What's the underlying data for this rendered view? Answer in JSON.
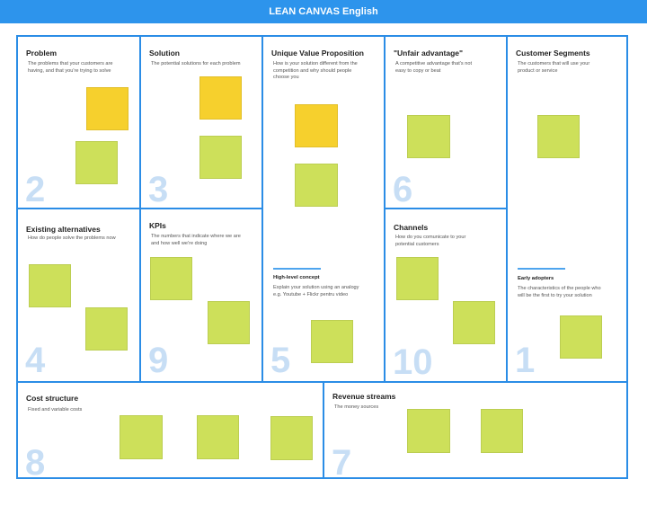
{
  "header": {
    "title": "LEAN CANVAS English"
  },
  "cells": {
    "problem": {
      "title": "Problem",
      "desc": "The problems that your customers are having, and that you're trying to solve",
      "number": "2"
    },
    "existing_alternatives": {
      "title": "Existing alternatives",
      "desc": "How do people solve the problems now",
      "number": "4"
    },
    "solution": {
      "title": "Solution",
      "desc": "The potential solutions for each problem",
      "number": "3"
    },
    "kpis": {
      "title": "KPIs",
      "desc": "The numbers that indicate where we are and how well we're doing",
      "number": "9"
    },
    "uvp": {
      "title": "Unique Value Proposition",
      "desc": "How is your solution different from the competition and why should people choose you",
      "number": "5",
      "sub_title": "High-level concept",
      "sub_desc": "Explain your solution using an analogy e.g. Youtube + Flickr pentru video"
    },
    "unfair_advantage": {
      "title": "\"Unfair advantage\"",
      "desc": "A competitive advantage that's not easy to copy or beat",
      "number": "6"
    },
    "channels": {
      "title": "Channels",
      "desc": "How do you comunicate to your potential customers",
      "number": "10"
    },
    "customer_segments": {
      "title": "Customer Segments",
      "desc": "The customers that will use your product or service",
      "number": "1",
      "sub_title": "Early adopters",
      "sub_desc": "The characteristics of the people who will be the first to try your solution"
    },
    "cost_structure": {
      "title": "Cost structure",
      "desc": "Fixed and variable costs",
      "number": "8"
    },
    "revenue_streams": {
      "title": "Revenue streams",
      "desc": "The money sources",
      "number": "7"
    }
  },
  "colors": {
    "border": "#2b8de6",
    "header": "#2d94ec",
    "sticky_green": "#cde05a",
    "sticky_yellow": "#f6d02d",
    "number": "#c7def5"
  }
}
